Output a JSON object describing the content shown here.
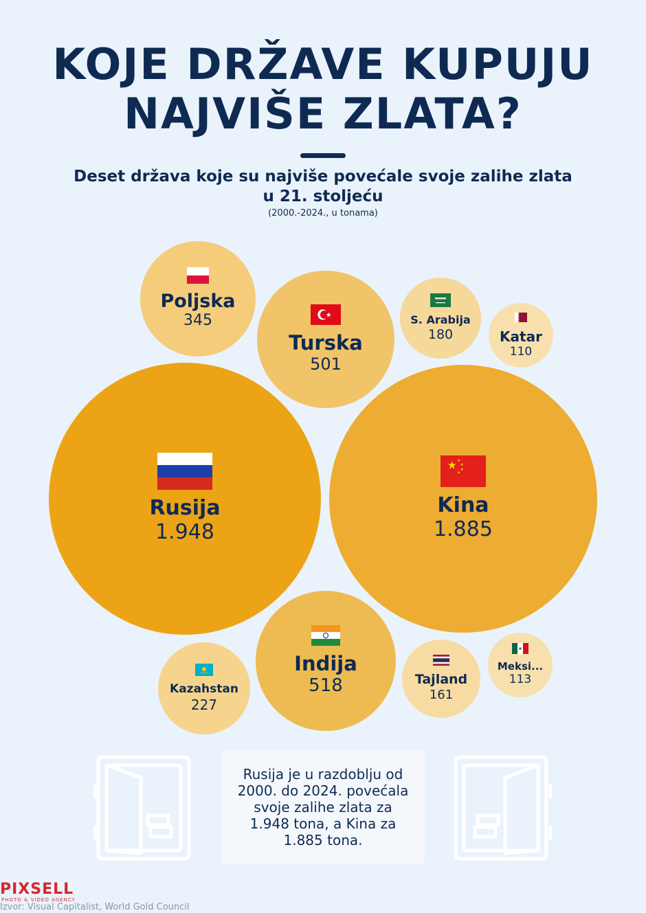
{
  "header": {
    "title_line1": "KOJE DRŽAVE KUPUJU",
    "title_line2": "NAJVIŠE ZLATA?",
    "subtitle_line1": "Deset država koje su najviše povećale svoje zalihe zlata",
    "subtitle_line2": "u 21. stoljeću",
    "note": "(2000.-2024., u tonama)"
  },
  "chart_data": {
    "type": "bubble",
    "unit": "tona",
    "items": [
      {
        "country": "Rusija",
        "label": "1.948",
        "value": 1948,
        "flag": "russia-flag",
        "color": "#eca416"
      },
      {
        "country": "Kina",
        "label": "1.885",
        "value": 1885,
        "flag": "china-flag",
        "color": "#edac32"
      },
      {
        "country": "Indija",
        "label": "518",
        "value": 518,
        "flag": "india-flag",
        "color": "#eebb52"
      },
      {
        "country": "Turska",
        "label": "501",
        "value": 501,
        "flag": "turkey-flag",
        "color": "#f1c469"
      },
      {
        "country": "Poljska",
        "label": "345",
        "value": 345,
        "flag": "poland-flag",
        "color": "#f4cc7a"
      },
      {
        "country": "Kazahstan",
        "label": "227",
        "value": 227,
        "flag": "kazakhstan-flag",
        "color": "#f6d48d"
      },
      {
        "country": "S. Arabija",
        "label": "180",
        "value": 180,
        "flag": "saudi-arabia-flag",
        "color": "#f6d89a"
      },
      {
        "country": "Tajland",
        "label": "161",
        "value": 161,
        "flag": "thailand-flag",
        "color": "#f7dba2"
      },
      {
        "country": "Meksi...",
        "label": "113",
        "value": 113,
        "flag": "mexico-flag",
        "color": "#f8e0ae"
      },
      {
        "country": "Katar",
        "label": "110",
        "value": 110,
        "flag": "qatar-flag",
        "color": "#f8e0ae"
      }
    ]
  },
  "info_box": {
    "text": "Rusija je u razdoblju od 2000. do 2024. povećala svoje zalihe zlata za 1.948 tona, a Kina za 1.885 tona."
  },
  "footer": {
    "logo": "PIXSELL",
    "logo_tagline": "PHOTO & VIDEO AGENCY",
    "source": "Izvor: Visual Capitalist, World Gold Council"
  }
}
